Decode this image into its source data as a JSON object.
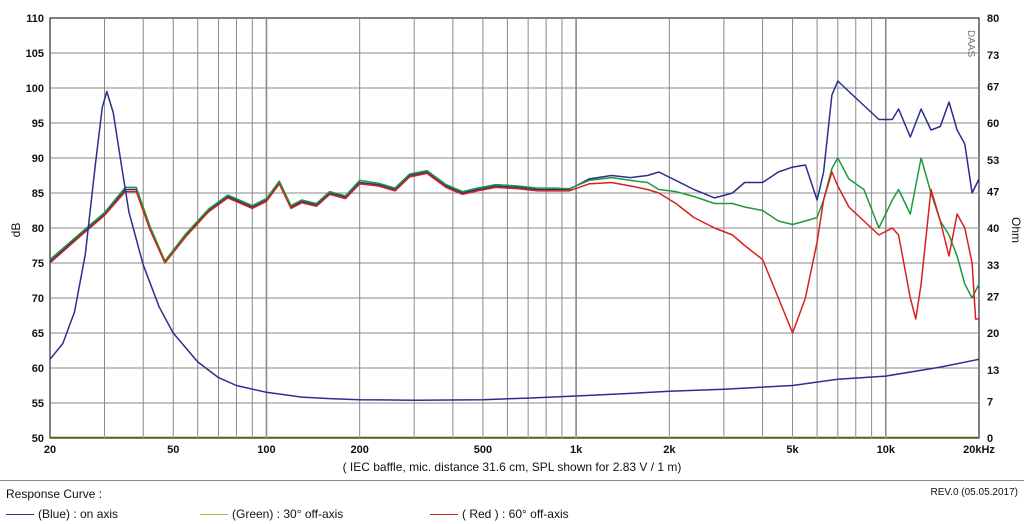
{
  "chart_data": {
    "type": "line",
    "xscale": "log",
    "xlim": [
      20,
      20000
    ],
    "xticks": [
      {
        "v": 20,
        "label": "20"
      },
      {
        "v": 50,
        "label": "50"
      },
      {
        "v": 100,
        "label": "100"
      },
      {
        "v": 200,
        "label": "200"
      },
      {
        "v": 500,
        "label": "500"
      },
      {
        "v": 1000,
        "label": "1k"
      },
      {
        "v": 2000,
        "label": "2k"
      },
      {
        "v": 5000,
        "label": "5k"
      },
      {
        "v": 10000,
        "label": "10k"
      },
      {
        "v": 20000,
        "label": "20kHz"
      }
    ],
    "ylim": [
      50,
      110
    ],
    "yticks": [
      "50",
      "55",
      "60",
      "65",
      "70",
      "75",
      "80",
      "85",
      "90",
      "95",
      "100",
      "105",
      "110"
    ],
    "ylabel": "dB",
    "y2lim": [
      0,
      80
    ],
    "y2ticks": [
      {
        "v": 0,
        "label": "0"
      },
      {
        "v": 7,
        "label": "7"
      },
      {
        "v": 13,
        "label": "13"
      },
      {
        "v": 20,
        "label": "20"
      },
      {
        "v": 27,
        "label": "27"
      },
      {
        "v": 33,
        "label": "33"
      },
      {
        "v": 40,
        "label": "40"
      },
      {
        "v": 47,
        "label": "47"
      },
      {
        "v": 53,
        "label": "53"
      },
      {
        "v": 60,
        "label": "60"
      },
      {
        "v": 67,
        "label": "67"
      },
      {
        "v": 73,
        "label": "73"
      },
      {
        "v": 80,
        "label": "80"
      }
    ],
    "y2label": "Ohm",
    "xlabel": "( IEC baffle, mic. distance 31.6 cm, SPL shown for 2.83 V / 1 m)",
    "watermark": "DAAS",
    "grid": true,
    "series": [
      {
        "name": "(Blue)  : on axis",
        "color": "#2b2f8c",
        "axis": "dB",
        "points": [
          [
            20,
            75.2
          ],
          [
            25,
            79
          ],
          [
            30,
            82
          ],
          [
            35,
            85.5
          ],
          [
            38,
            85.5
          ],
          [
            42,
            80
          ],
          [
            47,
            75.2
          ],
          [
            55,
            79
          ],
          [
            65,
            82.5
          ],
          [
            75,
            84.5
          ],
          [
            90,
            83
          ],
          [
            100,
            84
          ],
          [
            110,
            86.5
          ],
          [
            120,
            83
          ],
          [
            130,
            83.8
          ],
          [
            145,
            83.3
          ],
          [
            160,
            85
          ],
          [
            180,
            84.4
          ],
          [
            200,
            86.5
          ],
          [
            230,
            86.2
          ],
          [
            260,
            85.5
          ],
          [
            290,
            87.5
          ],
          [
            330,
            88
          ],
          [
            380,
            86
          ],
          [
            430,
            85
          ],
          [
            480,
            85.5
          ],
          [
            550,
            86
          ],
          [
            650,
            85.8
          ],
          [
            750,
            85.5
          ],
          [
            850,
            85.5
          ],
          [
            950,
            85.5
          ],
          [
            1100,
            87
          ],
          [
            1300,
            87.5
          ],
          [
            1500,
            87.2
          ],
          [
            1700,
            87.5
          ],
          [
            1850,
            88
          ],
          [
            2100,
            86.8
          ],
          [
            2400,
            85.5
          ],
          [
            2800,
            84.3
          ],
          [
            3200,
            85
          ],
          [
            3500,
            86.5
          ],
          [
            4000,
            86.5
          ],
          [
            4500,
            88
          ],
          [
            5000,
            88.7
          ],
          [
            5500,
            89
          ],
          [
            6000,
            84
          ],
          [
            6300,
            88
          ],
          [
            6700,
            99
          ],
          [
            7000,
            101
          ],
          [
            7600,
            99.5
          ],
          [
            8500,
            97.5
          ],
          [
            9500,
            95.5
          ],
          [
            10500,
            95.5
          ],
          [
            11000,
            97
          ],
          [
            12000,
            93
          ],
          [
            13000,
            97
          ],
          [
            14000,
            94
          ],
          [
            15000,
            94.5
          ],
          [
            16000,
            98
          ],
          [
            17000,
            94
          ],
          [
            18000,
            92
          ],
          [
            19000,
            85
          ],
          [
            20000,
            87
          ]
        ]
      },
      {
        "name": "(Green) : 30° off-axis",
        "color": "#1c9a3c",
        "axis": "dB",
        "points": [
          [
            20,
            75.5
          ],
          [
            25,
            79.2
          ],
          [
            30,
            82.2
          ],
          [
            35,
            85.8
          ],
          [
            38,
            85.8
          ],
          [
            42,
            80.3
          ],
          [
            47,
            75.3
          ],
          [
            55,
            79.2
          ],
          [
            65,
            82.7
          ],
          [
            75,
            84.7
          ],
          [
            90,
            83.2
          ],
          [
            100,
            84.2
          ],
          [
            110,
            86.7
          ],
          [
            120,
            83.2
          ],
          [
            130,
            84
          ],
          [
            145,
            83.5
          ],
          [
            160,
            85.2
          ],
          [
            180,
            84.6
          ],
          [
            200,
            86.8
          ],
          [
            230,
            86.4
          ],
          [
            260,
            85.7
          ],
          [
            290,
            87.7
          ],
          [
            330,
            88.2
          ],
          [
            380,
            86.2
          ],
          [
            430,
            85.2
          ],
          [
            480,
            85.7
          ],
          [
            550,
            86.2
          ],
          [
            650,
            86
          ],
          [
            750,
            85.7
          ],
          [
            850,
            85.7
          ],
          [
            950,
            85.6
          ],
          [
            1100,
            86.8
          ],
          [
            1300,
            87.2
          ],
          [
            1500,
            86.8
          ],
          [
            1700,
            86.5
          ],
          [
            1850,
            85.5
          ],
          [
            2100,
            85.2
          ],
          [
            2400,
            84.5
          ],
          [
            2800,
            83.5
          ],
          [
            3200,
            83.5
          ],
          [
            3500,
            83
          ],
          [
            4000,
            82.5
          ],
          [
            4500,
            81
          ],
          [
            5000,
            80.5
          ],
          [
            5500,
            81
          ],
          [
            6000,
            81.5
          ],
          [
            6300,
            84
          ],
          [
            6700,
            88.5
          ],
          [
            7000,
            90
          ],
          [
            7600,
            87
          ],
          [
            8500,
            85.5
          ],
          [
            9500,
            80
          ],
          [
            10500,
            84
          ],
          [
            11000,
            85.5
          ],
          [
            12000,
            82
          ],
          [
            13000,
            90
          ],
          [
            14000,
            85
          ],
          [
            15000,
            81
          ],
          [
            16000,
            79
          ],
          [
            17000,
            76
          ],
          [
            18000,
            72
          ],
          [
            19000,
            70
          ],
          [
            20000,
            72
          ]
        ]
      },
      {
        "name": "( Red )  : 60° off-axis",
        "color": "#d7211f",
        "axis": "dB",
        "points": [
          [
            20,
            75
          ],
          [
            25,
            78.8
          ],
          [
            30,
            81.8
          ],
          [
            35,
            85.2
          ],
          [
            38,
            85.2
          ],
          [
            42,
            79.8
          ],
          [
            47,
            75
          ],
          [
            55,
            78.8
          ],
          [
            65,
            82.3
          ],
          [
            75,
            84.3
          ],
          [
            90,
            82.8
          ],
          [
            100,
            83.8
          ],
          [
            110,
            86.3
          ],
          [
            120,
            82.8
          ],
          [
            130,
            83.6
          ],
          [
            145,
            83.1
          ],
          [
            160,
            84.8
          ],
          [
            180,
            84.2
          ],
          [
            200,
            86.3
          ],
          [
            230,
            86
          ],
          [
            260,
            85.3
          ],
          [
            290,
            87.3
          ],
          [
            330,
            87.8
          ],
          [
            380,
            85.8
          ],
          [
            430,
            84.8
          ],
          [
            480,
            85.3
          ],
          [
            550,
            85.8
          ],
          [
            650,
            85.6
          ],
          [
            750,
            85.3
          ],
          [
            850,
            85.3
          ],
          [
            950,
            85.3
          ],
          [
            1100,
            86.3
          ],
          [
            1300,
            86.5
          ],
          [
            1500,
            86
          ],
          [
            1700,
            85.5
          ],
          [
            1850,
            85
          ],
          [
            2100,
            83.5
          ],
          [
            2400,
            81.5
          ],
          [
            2800,
            80
          ],
          [
            3200,
            79
          ],
          [
            3500,
            77.5
          ],
          [
            4000,
            75.5
          ],
          [
            4500,
            70
          ],
          [
            5000,
            65
          ],
          [
            5500,
            70
          ],
          [
            6000,
            78
          ],
          [
            6300,
            84
          ],
          [
            6700,
            88
          ],
          [
            7000,
            86
          ],
          [
            7600,
            83
          ],
          [
            8500,
            81
          ],
          [
            9500,
            79
          ],
          [
            10500,
            80
          ],
          [
            11000,
            79
          ],
          [
            12000,
            70
          ],
          [
            12500,
            67
          ],
          [
            13000,
            72
          ],
          [
            14000,
            85.5
          ],
          [
            15000,
            81
          ],
          [
            16000,
            76
          ],
          [
            17000,
            82
          ],
          [
            18000,
            80
          ],
          [
            19000,
            75
          ],
          [
            19500,
            67
          ],
          [
            20000,
            67
          ]
        ]
      },
      {
        "name": "impedance",
        "color": "#2b2f8c",
        "axis": "Ohm",
        "points": [
          [
            20,
            15
          ],
          [
            22,
            18
          ],
          [
            24,
            24
          ],
          [
            26,
            35
          ],
          [
            28,
            52
          ],
          [
            29.5,
            63
          ],
          [
            30.5,
            66
          ],
          [
            32,
            62
          ],
          [
            34,
            52
          ],
          [
            36,
            43
          ],
          [
            40,
            33
          ],
          [
            45,
            25
          ],
          [
            50,
            20
          ],
          [
            60,
            14.5
          ],
          [
            70,
            11.5
          ],
          [
            80,
            10
          ],
          [
            100,
            8.7
          ],
          [
            130,
            7.8
          ],
          [
            160,
            7.5
          ],
          [
            200,
            7.3
          ],
          [
            300,
            7.2
          ],
          [
            500,
            7.3
          ],
          [
            700,
            7.6
          ],
          [
            1000,
            8
          ],
          [
            1500,
            8.5
          ],
          [
            2000,
            8.9
          ],
          [
            3000,
            9.3
          ],
          [
            5000,
            10
          ],
          [
            7000,
            11.2
          ],
          [
            10000,
            11.8
          ],
          [
            15000,
            13.5
          ],
          [
            20000,
            15
          ]
        ]
      }
    ]
  },
  "footer": {
    "title": "Response Curve :",
    "revision": "REV.0 (05.05.2017)",
    "legend": [
      {
        "label": "(Blue)  : on axis",
        "color": "#2b2f8c"
      },
      {
        "label": "(Green) : 30° off-axis",
        "color": "#9cc33a"
      },
      {
        "label": "( Red )  : 60° off-axis",
        "color": "#d7211f"
      }
    ]
  }
}
